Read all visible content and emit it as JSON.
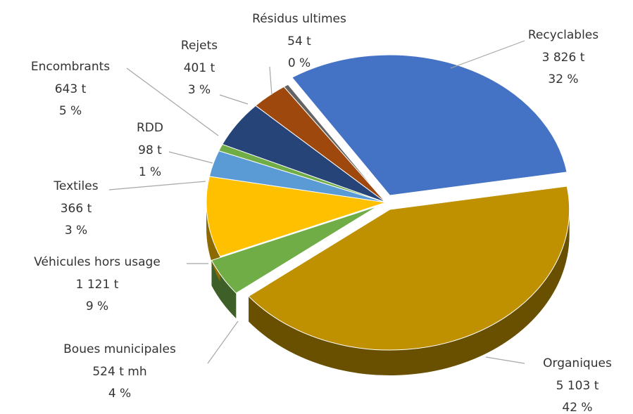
{
  "chart_data": {
    "type": "pie",
    "categories": [
      "Recyclables",
      "Organiques",
      "Boues municipales",
      "Véhicules hors usage",
      "Textiles",
      "RDD",
      "Encombrants",
      "Rejets",
      "Résidus ultimes"
    ],
    "values": [
      3826,
      5103,
      524,
      1121,
      366,
      98,
      643,
      401,
      54
    ],
    "value_labels": [
      "3 826 t",
      "5 103 t",
      "524 t mh",
      "1 121 t",
      "366 t",
      "98 t",
      "643 t",
      "401 t",
      "54 t"
    ],
    "percentages": [
      32,
      42,
      4,
      9,
      3,
      1,
      5,
      3,
      0
    ],
    "percentage_labels": [
      "32 %",
      "42 %",
      "4 %",
      "9 %",
      "3 %",
      "1 %",
      "5 %",
      "3 %",
      "0 %"
    ],
    "colors": [
      "#4472c4",
      "#bf9000",
      "#70ad47",
      "#ffc000",
      "#5b9bd5",
      "#70ad47",
      "#264478",
      "#9e480e",
      "#636363"
    ],
    "exploded": [
      true,
      true,
      true,
      false,
      false,
      false,
      false,
      false,
      false
    ]
  }
}
